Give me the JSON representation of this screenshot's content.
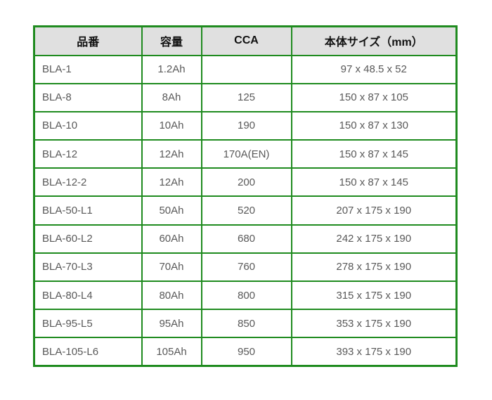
{
  "colors": {
    "border_green": "#1f8b1f",
    "header_bg": "#e0e0e0",
    "header_text": "#111111",
    "cell_text": "#595959",
    "page_bg": "#ffffff"
  },
  "table": {
    "headers": [
      "品番",
      "容量",
      "CCA",
      "本体サイズ（mm）"
    ],
    "column_keys": [
      "part-number",
      "capacity",
      "cca",
      "body-size"
    ],
    "rows": [
      [
        "BLA-1",
        "1.2Ah",
        "",
        "97 x 48.5 x 52"
      ],
      [
        "BLA-8",
        "8Ah",
        "125",
        "150 x 87 x 105"
      ],
      [
        "BLA-10",
        "10Ah",
        "190",
        "150 x 87 x 130"
      ],
      [
        "BLA-12",
        "12Ah",
        "170A(EN)",
        "150 x 87 x 145"
      ],
      [
        "BLA-12-2",
        "12Ah",
        "200",
        "150 x 87 x 145"
      ],
      [
        "BLA-50-L1",
        "50Ah",
        "520",
        "207 x 175 x 190"
      ],
      [
        "BLA-60-L2",
        "60Ah",
        "680",
        "242 x 175 x 190"
      ],
      [
        "BLA-70-L3",
        "70Ah",
        "760",
        "278 x 175 x 190"
      ],
      [
        "BLA-80-L4",
        "80Ah",
        "800",
        "315 x 175 x 190"
      ],
      [
        "BLA-95-L5",
        "95Ah",
        "850",
        "353 x 175 x 190"
      ],
      [
        "BLA-105-L6",
        "105Ah",
        "950",
        "393 x 175 x 190"
      ]
    ]
  },
  "chart_data": {
    "type": "table",
    "title": "",
    "columns": [
      "品番",
      "容量",
      "CCA",
      "本体サイズ（mm）"
    ],
    "rows": [
      {
        "品番": "BLA-1",
        "容量": "1.2Ah",
        "CCA": "",
        "本体サイズ（mm）": "97 x 48.5 x 52"
      },
      {
        "品番": "BLA-8",
        "容量": "8Ah",
        "CCA": "125",
        "本体サイズ（mm）": "150 x 87 x 105"
      },
      {
        "品番": "BLA-10",
        "容量": "10Ah",
        "CCA": "190",
        "本体サイズ（mm）": "150 x 87 x 130"
      },
      {
        "品番": "BLA-12",
        "容量": "12Ah",
        "CCA": "170A(EN)",
        "本体サイズ（mm）": "150 x 87 x 145"
      },
      {
        "品番": "BLA-12-2",
        "容量": "12Ah",
        "CCA": "200",
        "本体サイズ（mm）": "150 x 87 x 145"
      },
      {
        "品番": "BLA-50-L1",
        "容量": "50Ah",
        "CCA": "520",
        "本体サイズ（mm）": "207 x 175 x 190"
      },
      {
        "品番": "BLA-60-L2",
        "容量": "60Ah",
        "CCA": "680",
        "本体サイズ（mm）": "242 x 175 x 190"
      },
      {
        "品番": "BLA-70-L3",
        "容量": "70Ah",
        "CCA": "760",
        "本体サイズ（mm）": "278 x 175 x 190"
      },
      {
        "品番": "BLA-80-L4",
        "容量": "80Ah",
        "CCA": "800",
        "本体サイズ（mm）": "315 x 175 x 190"
      },
      {
        "品番": "BLA-95-L5",
        "容量": "95Ah",
        "CCA": "850",
        "本体サイズ（mm）": "353 x 175 x 190"
      },
      {
        "品番": "BLA-105-L6",
        "容量": "105Ah",
        "CCA": "950",
        "本体サイズ（mm）": "393 x 175 x 190"
      }
    ]
  }
}
